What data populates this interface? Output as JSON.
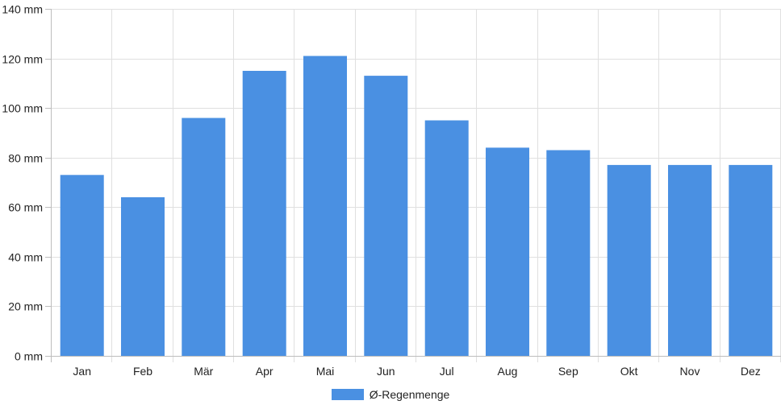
{
  "chart_data": {
    "type": "bar",
    "categories": [
      "Jan",
      "Feb",
      "Mär",
      "Apr",
      "Mai",
      "Jun",
      "Jul",
      "Aug",
      "Sep",
      "Okt",
      "Nov",
      "Dez"
    ],
    "series": [
      {
        "name": "Ø-Regenmenge",
        "values": [
          73,
          64,
          96,
          115,
          121,
          113,
          95,
          84,
          83,
          77,
          77,
          77
        ],
        "color": "#4a90e2"
      }
    ],
    "ylim": [
      0,
      140
    ],
    "y_ticks": [
      "0 mm",
      "20 mm",
      "40 mm",
      "60 mm",
      "80 mm",
      "100 mm",
      "120 mm",
      "140 mm"
    ],
    "y_tick_values": [
      0,
      20,
      40,
      60,
      80,
      100,
      120,
      140
    ],
    "grid": true,
    "legend_position": "bottom-center"
  },
  "colors": {
    "bar": "#4a90e2",
    "grid": "#e0e0e0",
    "axis": "#bdbdbd",
    "text": "#222222"
  }
}
